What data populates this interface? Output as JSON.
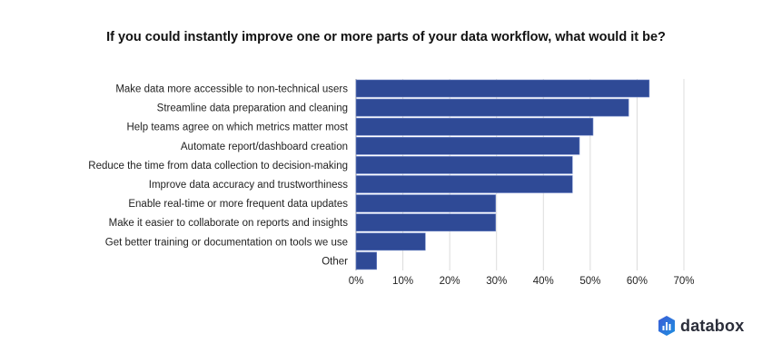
{
  "chart_data": {
    "type": "bar",
    "orientation": "horizontal",
    "title": "If you could instantly improve one or more parts of your data workflow, what would it be?",
    "categories": [
      "Make data more accessible to non-technical users",
      "Streamline data preparation and cleaning",
      "Help teams agree on which metrics matter most",
      "Automate report/dashboard creation",
      "Reduce the time from data collection to decision-making",
      "Improve data accuracy and trustworthiness",
      "Enable real-time or more frequent data updates",
      "Make it easier to collaborate on reports and insights",
      "Get better training or documentation on tools we use",
      "Other"
    ],
    "values": [
      62.6,
      58.2,
      50.6,
      47.7,
      46.2,
      46.2,
      29.8,
      29.8,
      14.8,
      4.4
    ],
    "xlabel": "",
    "ylabel": "",
    "xlim": [
      0,
      70
    ],
    "xticks": [
      "0%",
      "10%",
      "20%",
      "30%",
      "40%",
      "50%",
      "60%",
      "70%"
    ],
    "grid": true,
    "bar_color": "#2f4a96"
  },
  "brand": {
    "name": "databox"
  }
}
